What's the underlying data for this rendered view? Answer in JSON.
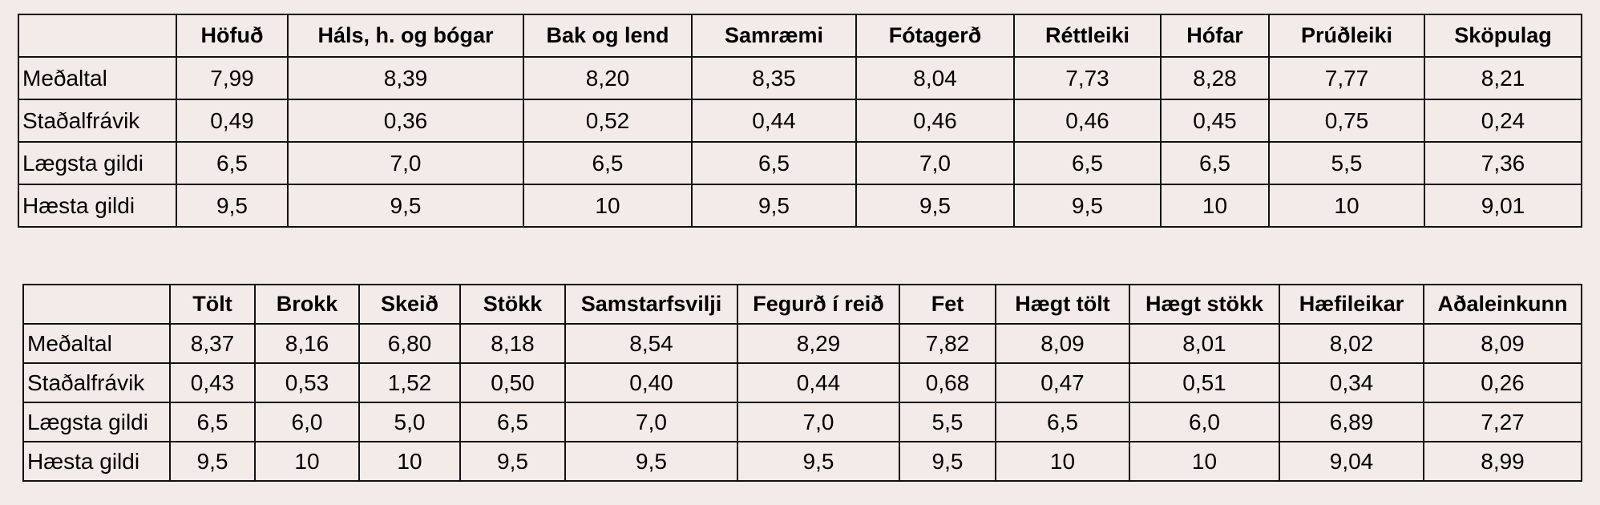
{
  "table1": {
    "columns": [
      "Höfuð",
      "Háls, h. og bógar",
      "Bak og lend",
      "Samræmi",
      "Fótagerð",
      "Réttleiki",
      "Hófar",
      "Prúðleiki",
      "Sköpulag"
    ],
    "rows": [
      {
        "label": "Meðaltal",
        "values": [
          "7,99",
          "8,39",
          "8,20",
          "8,35",
          "8,04",
          "7,73",
          "8,28",
          "7,77",
          "8,21"
        ]
      },
      {
        "label": "Staðalfrávik",
        "values": [
          "0,49",
          "0,36",
          "0,52",
          "0,44",
          "0,46",
          "0,46",
          "0,45",
          "0,75",
          "0,24"
        ]
      },
      {
        "label": "Lægsta gildi",
        "values": [
          "6,5",
          "7,0",
          "6,5",
          "6,5",
          "7,0",
          "6,5",
          "6,5",
          "5,5",
          "7,36"
        ]
      },
      {
        "label": "Hæsta gildi",
        "values": [
          "9,5",
          "9,5",
          "10",
          "9,5",
          "9,5",
          "9,5",
          "10",
          "10",
          "9,01"
        ]
      }
    ]
  },
  "table2": {
    "columns": [
      "Tölt",
      "Brokk",
      "Skeið",
      "Stökk",
      "Samstarfsvilji",
      "Fegurð í reið",
      "Fet",
      "Hægt tölt",
      "Hægt stökk",
      "Hæfileikar",
      "Aðaleinkunn"
    ],
    "rows": [
      {
        "label": "Meðaltal",
        "values": [
          "8,37",
          "8,16",
          "6,80",
          "8,18",
          "8,54",
          "8,29",
          "7,82",
          "8,09",
          "8,01",
          "8,02",
          "8,09"
        ]
      },
      {
        "label": "Staðalfrávik",
        "values": [
          "0,43",
          "0,53",
          "1,52",
          "0,50",
          "0,40",
          "0,44",
          "0,68",
          "0,47",
          "0,51",
          "0,34",
          "0,26"
        ]
      },
      {
        "label": "Lægsta gildi",
        "values": [
          "6,5",
          "6,0",
          "5,0",
          "6,5",
          "7,0",
          "7,0",
          "5,5",
          "6,5",
          "6,0",
          "6,89",
          "7,27"
        ]
      },
      {
        "label": "Hæsta gildi",
        "values": [
          "9,5",
          "10",
          "10",
          "9,5",
          "9,5",
          "9,5",
          "9,5",
          "10",
          "10",
          "9,04",
          "8,99"
        ]
      }
    ]
  }
}
